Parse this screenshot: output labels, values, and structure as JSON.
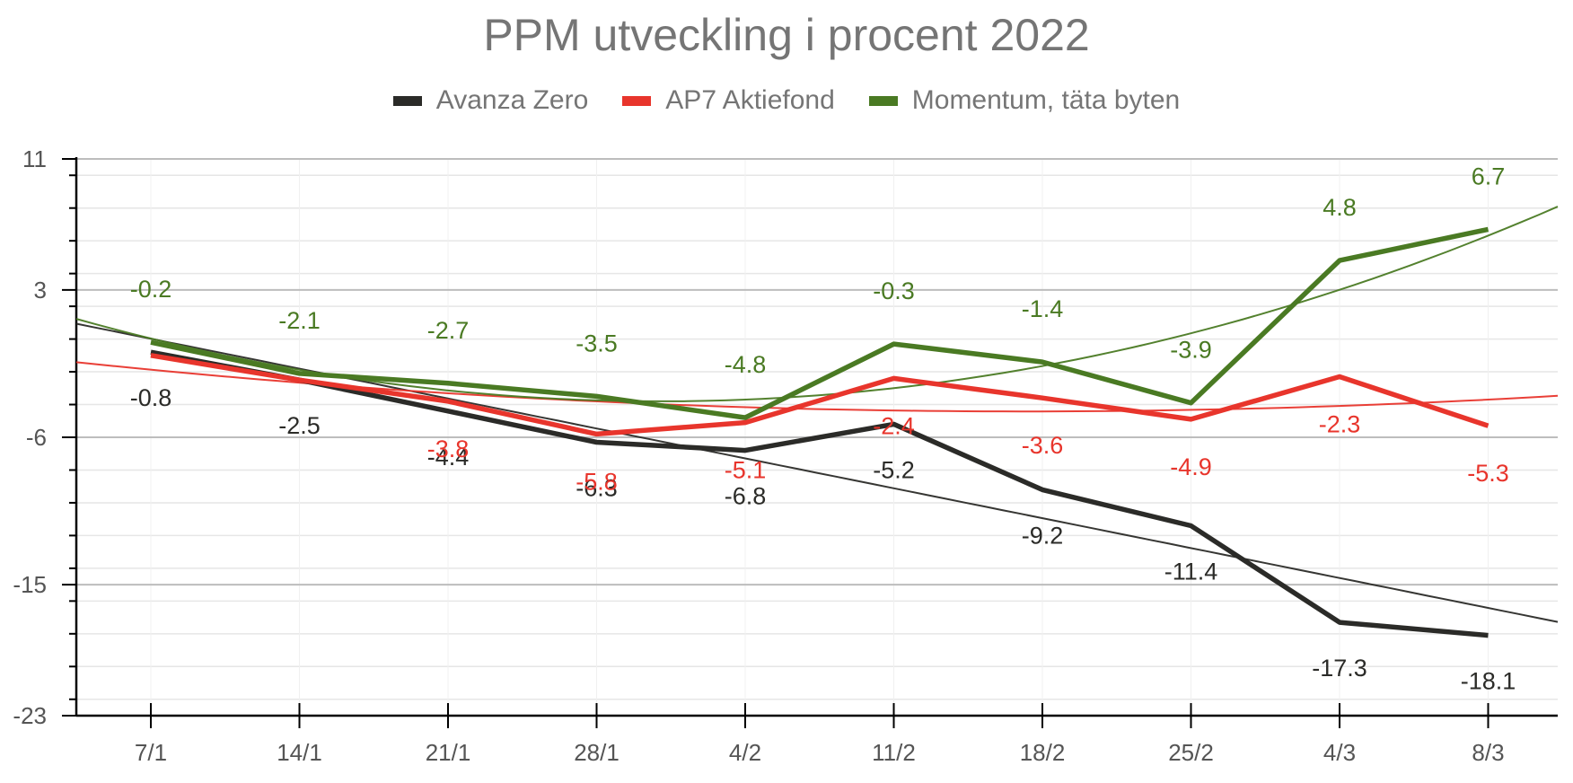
{
  "chart_data": {
    "type": "line",
    "title": "PPM utveckling i procent 2022",
    "xlabel": "",
    "ylabel": "",
    "categories": [
      "7/1",
      "14/1",
      "21/1",
      "28/1",
      "4/2",
      "11/2",
      "18/2",
      "25/2",
      "4/3",
      "8/3"
    ],
    "ylim": [
      -23,
      11
    ],
    "yticks": [
      "11",
      "3",
      "-6",
      "-15",
      "-23"
    ],
    "grid": true,
    "legend_position": "top-center",
    "series": [
      {
        "name": "Avanza Zero",
        "color": "#2b2b28",
        "values": [
          -0.8,
          -2.5,
          -4.4,
          -6.3,
          -6.8,
          -5.2,
          -9.2,
          -11.4,
          -17.3,
          -18.1
        ],
        "labels": [
          "-0.8",
          "-2.5",
          "-4.4",
          "-6.3",
          "-6.8",
          "-5.2",
          "-9.2",
          "-11.4",
          "-17.3",
          "-18.1"
        ],
        "trendline": "linear"
      },
      {
        "name": "AP7 Aktiefond",
        "color": "#e8352c",
        "values": [
          -1.0,
          -2.5,
          -3.8,
          -5.8,
          -5.1,
          -2.4,
          -3.6,
          -4.9,
          -2.3,
          -5.3
        ],
        "labels": [
          "",
          "",
          "-3.8",
          "-5.8",
          "-5.1",
          "-2.4",
          "-3.6",
          "-4.9",
          "-2.3",
          "-5.3"
        ],
        "trendline": "polynomial"
      },
      {
        "name": "Momentum, täta byten",
        "color": "#4a7a23",
        "values": [
          -0.2,
          -2.1,
          -2.7,
          -3.5,
          -4.8,
          -0.3,
          -1.4,
          -3.9,
          4.8,
          6.7
        ],
        "labels": [
          "-0.2",
          "-2.1",
          "-2.7",
          "-3.5",
          "-4.8",
          "-0.3",
          "-1.4",
          "-3.9",
          "4.8",
          "6.7"
        ],
        "trendline": "polynomial"
      }
    ]
  }
}
